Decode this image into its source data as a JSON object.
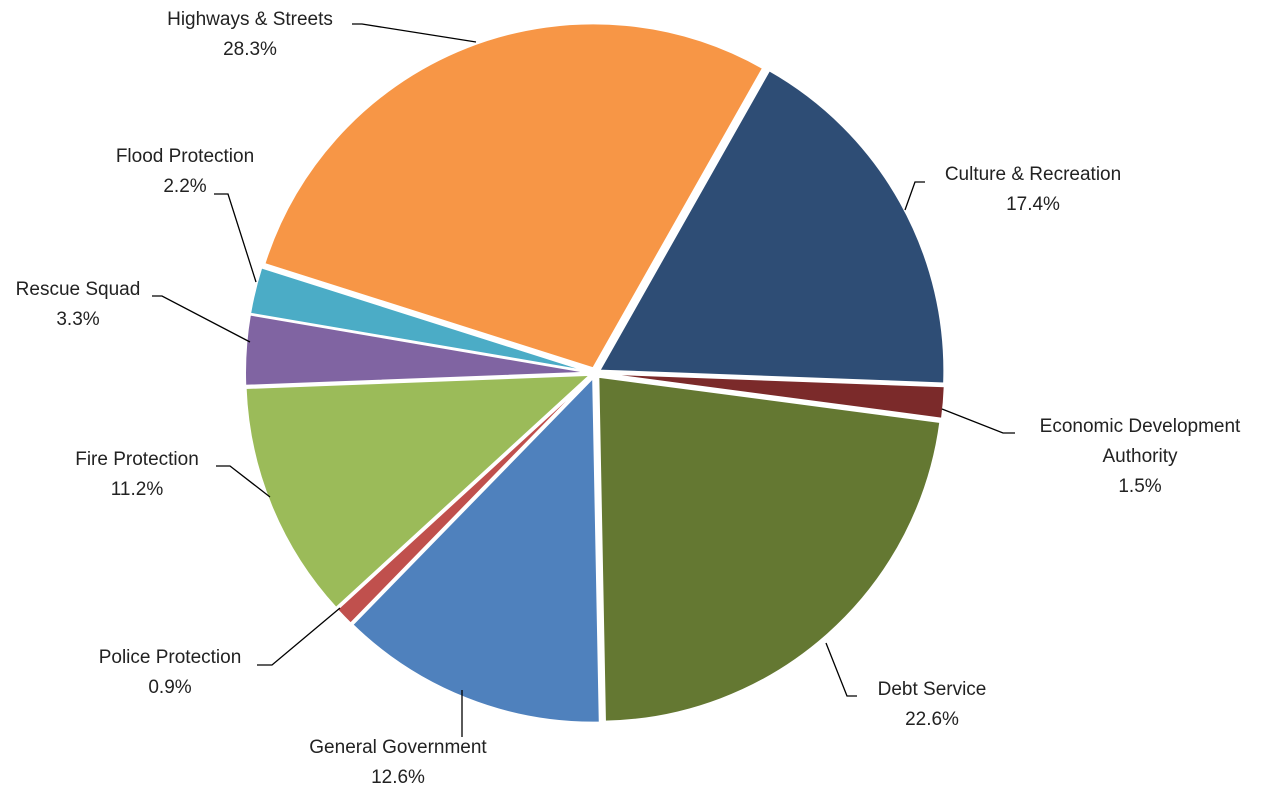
{
  "chart_data": {
    "type": "pie",
    "categories": [
      "Culture & Recreation",
      "Economic Development Authority",
      "Debt Service",
      "General Government",
      "Police Protection",
      "Fire Protection",
      "Rescue Squad",
      "Flood Protection",
      "Highways & Streets"
    ],
    "values": [
      17.4,
      1.5,
      22.6,
      12.6,
      0.9,
      11.2,
      3.3,
      2.2,
      28.3
    ],
    "value_labels": [
      "17.4%",
      "1.5%",
      "22.6%",
      "12.6%",
      "0.9%",
      "11.2%",
      "3.3%",
      "2.2%",
      "28.3%"
    ],
    "colors": [
      "#2e4d75",
      "#7b2a2a",
      "#647832",
      "#4f81bd",
      "#c0504d",
      "#9bbb59",
      "#8064a2",
      "#4bacc6",
      "#f79646"
    ]
  }
}
